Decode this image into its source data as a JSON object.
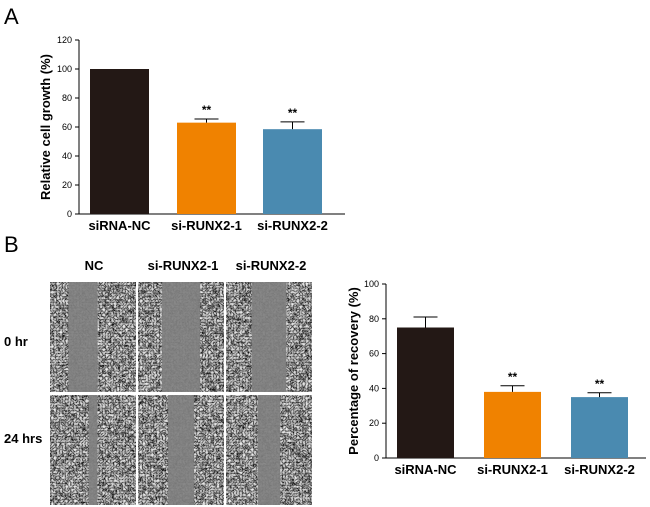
{
  "panels": {
    "a": "A",
    "b": "B"
  },
  "micrograph": {
    "columns": [
      "NC",
      "si-RUNX2-1",
      "si-RUNX2-2"
    ],
    "rows": [
      "0 hr",
      "24 hrs"
    ]
  },
  "colors": {
    "bar1": "#231815",
    "bar2": "#f08200",
    "bar3": "#4a8ab0",
    "axis": "#000000"
  },
  "chart_data": [
    {
      "type": "bar",
      "title": "",
      "xlabel": "",
      "ylabel": "Relative  cell growth (%)",
      "categories": [
        "siRNA-NC",
        "si-RUNX2-1",
        "si-RUNX2-2"
      ],
      "values": [
        100,
        63,
        58.5
      ],
      "errors": [
        0,
        2.5,
        5
      ],
      "significance": [
        "",
        "**",
        "**"
      ],
      "ylim": [
        0,
        120
      ],
      "yticks": [
        0,
        20,
        40,
        60,
        80,
        100,
        120
      ]
    },
    {
      "type": "bar",
      "title": "",
      "xlabel": "",
      "ylabel": "Percentage of recovery (%)",
      "categories": [
        "siRNA-NC",
        "si-RUNX2-1",
        "si-RUNX2-2"
      ],
      "values": [
        75,
        38,
        35
      ],
      "errors": [
        6,
        3.5,
        2.5
      ],
      "significance": [
        "",
        "**",
        "**"
      ],
      "ylim": [
        0,
        100
      ],
      "yticks": [
        0,
        20,
        40,
        60,
        80,
        100
      ]
    }
  ]
}
